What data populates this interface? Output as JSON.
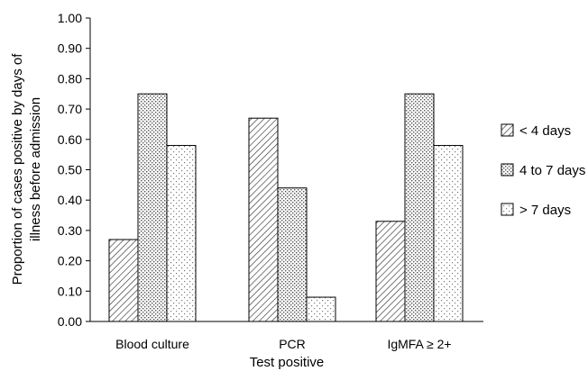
{
  "chart_data": {
    "type": "bar",
    "title": "",
    "xlabel": "Test positive",
    "ylabel_lines": [
      "Proportion of cases positive by days of",
      "illness before admission"
    ],
    "ylim": [
      0,
      1.0
    ],
    "yticks": [
      "0.00",
      "0.10",
      "0.20",
      "0.30",
      "0.40",
      "0.50",
      "0.60",
      "0.70",
      "0.80",
      "0.90",
      "1.00"
    ],
    "categories": [
      "Blood culture",
      "PCR",
      "IgMFA ≥ 2+"
    ],
    "series": [
      {
        "name": "< 4 days",
        "pattern": "diagonal-hatch",
        "values": [
          0.27,
          0.67,
          0.33
        ]
      },
      {
        "name": "4 to 7 days",
        "pattern": "dense-dots",
        "values": [
          0.75,
          0.44,
          0.75
        ]
      },
      {
        "name": "> 7 days",
        "pattern": "sparse-dots",
        "values": [
          0.58,
          0.08,
          0.58
        ]
      }
    ],
    "legend_position": "right",
    "grid": false
  }
}
